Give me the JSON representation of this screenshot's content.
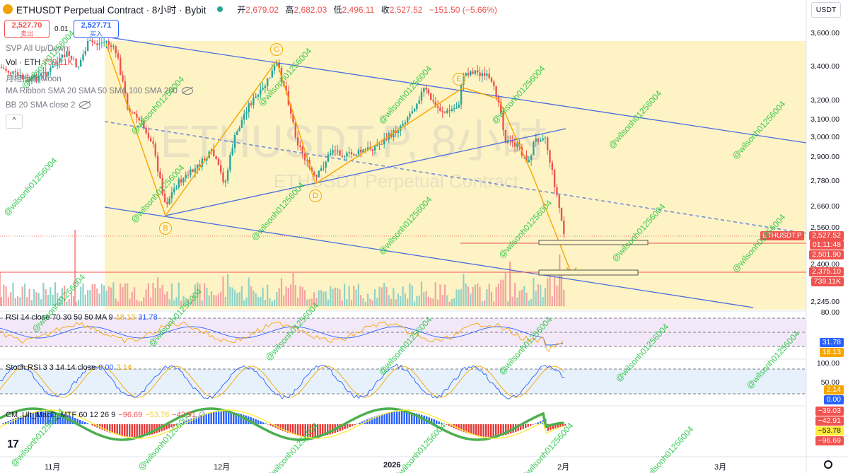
{
  "header": {
    "title": "ETHUSDT Perpetual Contract · 8小时 · Bybit",
    "open_label": "开",
    "open": "2,679.02",
    "high_label": "高",
    "high": "2,682.03",
    "low_label": "低",
    "low": "2,496.11",
    "close_label": "收",
    "close": "2,527.52",
    "change": "−151.50 (−5.66%)"
  },
  "trade": {
    "sell_price": "2,527.70",
    "sell_label": "卖出",
    "spread": "0.01",
    "buy_price": "2,527.71",
    "buy_label": "买入"
  },
  "indicators": {
    "svp": "SVP All Up/Down",
    "vol_name": "Vol · ETH",
    "vol_value": "739.11K",
    "moon": "月相指标(Moon",
    "ma_ribbon": "MA Ribbon SMA 20 SMA 50 SMA 100 SMA 200",
    "bb": "BB 20 SMA close 2",
    "collapse": "^"
  },
  "watermark": {
    "big": "ETHUSDT.P, 8小时",
    "small": "ETHUSDT Perpetual Contract",
    "handle": "@wilsonh01256004"
  },
  "wave_labels": [
    "B",
    "C",
    "D",
    "E"
  ],
  "rsi": {
    "label": "RSI 14 close 70 30 50 50 MA 9",
    "v1": "18.13",
    "v2": "31.78"
  },
  "stoch": {
    "label": "Stoch RSI 3 3 14 14 close",
    "v1": "0.00",
    "v2": "2.14"
  },
  "macd": {
    "label": "CM_Ult_MacD_MTF 60 12 26 9",
    "v1": "−96.69",
    "v2": "−53.78",
    "v3": "−42.91",
    "v4": "∅"
  },
  "price_axis": {
    "unit": "USDT",
    "ticks": [
      "3,600.00",
      "3,400.00",
      "3,200.00",
      "3,100.00",
      "3,000.00",
      "2,900.00",
      "2,780.00",
      "2,660.00",
      "2,560.00",
      "2,400.00",
      "2,245.00"
    ],
    "symbol_tag": "ETHUSDT.P",
    "last_price": "2,527.52",
    "countdown": "01:11:48",
    "level1": "2,501.90",
    "level2": "2,375.10",
    "volume": "739.11K"
  },
  "rsi_axis": {
    "top": "80.00",
    "v1": "31.78",
    "v2": "18.13"
  },
  "stoch_axis": {
    "top": "100.00",
    "mid": "50.00",
    "v1": "2.14",
    "v2": "0.00"
  },
  "macd_axis": {
    "v1": "−39.03",
    "v2": "−42.91",
    "v3": "−53.78",
    "v4": "−96.69"
  },
  "time_axis": [
    "11月",
    "12月",
    "2026",
    "2月",
    "3月"
  ],
  "colors": {
    "up": "#26a69a",
    "down": "#ef5350",
    "channel": "#4a6ee0",
    "wave": "#f7a600",
    "zone": "#fdf3c4"
  }
}
